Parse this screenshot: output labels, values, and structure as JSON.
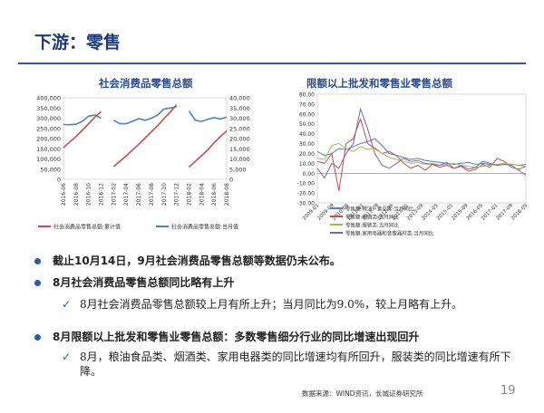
{
  "header": {
    "title": "下游：零售"
  },
  "left_chart": {
    "title": "社会消费品零售总额",
    "left_ticks": [
      "400,000",
      "350,000",
      "300,000",
      "250,000",
      "200,000",
      "150,000",
      "100,000",
      "50,000",
      "0"
    ],
    "right_ticks": [
      "40,000",
      "35,000",
      "30,000",
      "25,000",
      "20,000",
      "15,000",
      "10,000",
      "5,000",
      "0"
    ],
    "x_ticks": [
      "2016-06",
      "2016-08",
      "2016-10",
      "2016-12",
      "2017-02",
      "2017-04",
      "2017-06",
      "2017-08",
      "2017-10",
      "2017-12",
      "2018-02",
      "2018-04",
      "2018-06",
      "2018-08"
    ],
    "legend": [
      "社会消费品零售总额:累计值",
      "社会消费品零售总额:当月值"
    ]
  },
  "right_chart": {
    "title": "限额以上批发和零售业零售总额",
    "y_ticks": [
      "80.00",
      "70.00",
      "60.00",
      "50.00",
      "40.00",
      "30.00",
      "20.00",
      "10.00",
      "0.00",
      "-10.00",
      "-20.00",
      "-30.00"
    ],
    "x_ticks": [
      "2009-01",
      "2009-09",
      "2010-05",
      "2011-01",
      "2011-09",
      "2012-05",
      "2013-01",
      "2013-09",
      "2014-05",
      "2015-01",
      "2015-09",
      "2016-05",
      "2017-01",
      "2017-09",
      "2018-05"
    ],
    "legend": [
      "零售额:粮油、食品类:当月同比",
      "零售额:烟酒类:当月同比",
      "零售额:服装类:当月同比",
      "零售额:家用电器和音像器材类:当月同比"
    ]
  },
  "chart_data": [
    {
      "type": "line",
      "title": "社会消费品零售总额",
      "categories": [
        "2016-06",
        "2016-07",
        "2016-08",
        "2016-09",
        "2016-10",
        "2016-11",
        "2016-12",
        "2017-01",
        "2017-02",
        "2017-03",
        "2017-04",
        "2017-05",
        "2017-06",
        "2017-07",
        "2017-08",
        "2017-09",
        "2017-10",
        "2017-11",
        "2017-12",
        "2018-01",
        "2018-02",
        "2018-03",
        "2018-04",
        "2018-05",
        "2018-06",
        "2018-07",
        "2018-08"
      ],
      "series": [
        {
          "name": "社会消费品零售总额:累计值",
          "axis": "left",
          "color": "#c0504d",
          "values": [
            156000,
            183000,
            210000,
            241000,
            273000,
            305000,
            332000,
            null,
            62000,
            89000,
            115000,
            144000,
            172000,
            202000,
            233000,
            263000,
            298000,
            330000,
            366000,
            null,
            60000,
            88000,
            116000,
            145000,
            180000,
            210000,
            238000
          ]
        },
        {
          "name": "社会消费品零售总额:当月值",
          "axis": "right",
          "color": "#4f81bd",
          "values": [
            26900,
            26800,
            27000,
            28500,
            31000,
            31500,
            30000,
            null,
            29000,
            27300,
            27300,
            28500,
            29800,
            29000,
            30000,
            31500,
            34500,
            35000,
            35500,
            null,
            33500,
            29000,
            28400,
            29500,
            30200,
            29600,
            30500
          ]
        }
      ],
      "ylim_left": [
        0,
        400000
      ],
      "ylim_right": [
        0,
        40000
      ],
      "legend_position": "bottom"
    },
    {
      "type": "line",
      "title": "限额以上批发和零售业零售总额",
      "x": [
        "2009-01",
        "2009-05",
        "2009-09",
        "2010-01",
        "2010-05",
        "2010-09",
        "2011-01",
        "2011-05",
        "2011-09",
        "2012-01",
        "2012-05",
        "2012-09",
        "2013-01",
        "2013-05",
        "2013-09",
        "2014-01",
        "2014-05",
        "2014-09",
        "2015-01",
        "2015-05",
        "2015-09",
        "2016-01",
        "2016-05",
        "2016-09",
        "2017-01",
        "2017-05",
        "2017-09",
        "2018-01",
        "2018-05",
        "2018-09"
      ],
      "series": [
        {
          "name": "零售额:粮油、食品类:当月同比",
          "color": "#4f81bd",
          "values": [
            22,
            18,
            20,
            25,
            24,
            27,
            30,
            32,
            35,
            28,
            20,
            18,
            16,
            14,
            15,
            13,
            12,
            11,
            10,
            9,
            10,
            11,
            9,
            10,
            9,
            8,
            10,
            9,
            8,
            9
          ]
        },
        {
          "name": "零售额:烟酒类:当月同比",
          "color": "#c0504d",
          "values": [
            12,
            10,
            20,
            -18,
            30,
            35,
            55,
            30,
            25,
            20,
            22,
            18,
            10,
            5,
            8,
            3,
            9,
            6,
            8,
            5,
            7,
            2,
            4,
            9,
            6,
            15,
            12,
            6,
            4,
            7
          ]
        },
        {
          "name": "零售额:服装类:当月同比",
          "color": "#9bbb59",
          "values": [
            15,
            14,
            28,
            30,
            25,
            22,
            27,
            24,
            26,
            20,
            16,
            14,
            12,
            10,
            11,
            9,
            10,
            8,
            9,
            10,
            8,
            7,
            6,
            7,
            8,
            9,
            10,
            9,
            8,
            7
          ]
        },
        {
          "name": "零售额:家用电器和音像器材类:当月同比",
          "color": "#8064a2",
          "values": [
            5,
            -5,
            10,
            5,
            20,
            30,
            65,
            45,
            20,
            8,
            5,
            10,
            15,
            12,
            13,
            10,
            9,
            8,
            11,
            5,
            8,
            4,
            6,
            12,
            10,
            8,
            9,
            8,
            3,
            -2
          ]
        }
      ],
      "ylim": [
        -30,
        80
      ],
      "legend_position": "bottom"
    }
  ],
  "bullets": [
    {
      "type": "main",
      "text": "截止10月14日，9月社会消费品零售总额等数据仍未公布。"
    },
    {
      "type": "main",
      "text": "8月社会消费品零售总额同比略有上升"
    },
    {
      "type": "sub",
      "text": "8月社会消费品零售总额较上月有所上升；当月同比为9.0%，较上月略有上升。"
    },
    {
      "type": "main",
      "text": "8月限额以上批发和零售业零售总额：多数零售细分行业的同比增速出现回升"
    },
    {
      "type": "sub",
      "text": "8月，粮油食品类、烟酒类、家用电器类的同比增速均有所回升，服装类的同比增速有所下降。"
    }
  ],
  "footer": {
    "source": "数据来源：WIND资讯，长城证券研究所",
    "page": "19"
  }
}
